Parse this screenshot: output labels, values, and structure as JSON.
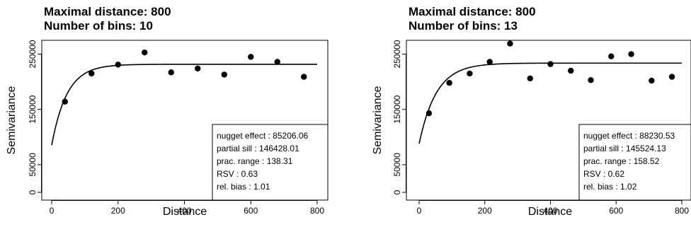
{
  "chart_data": [
    {
      "type": "scatter",
      "title_lines": [
        "Maximal distance: 800",
        "Number of bins: 10"
      ],
      "xlabel": "Distance",
      "ylabel": "Semivariance",
      "xlim": [
        0,
        800
      ],
      "ylim": [
        0,
        275000
      ],
      "xticks": [
        0,
        200,
        400,
        600,
        800
      ],
      "yticks": [
        0,
        50000,
        150000,
        250000
      ],
      "xtick_labels": [
        "0",
        "200",
        "400",
        "600",
        "800"
      ],
      "ytick_labels": [
        "0",
        "50000",
        "150000",
        "250000"
      ],
      "points": {
        "x": [
          40,
          120,
          200,
          280,
          360,
          440,
          520,
          600,
          680,
          760
        ],
        "y": [
          164000,
          215000,
          231000,
          253000,
          217000,
          224000,
          213000,
          245000,
          236000,
          209000
        ]
      },
      "model": {
        "nugget": 85206.06,
        "partial_sill": 146428.01,
        "range": 138.31
      },
      "legend": {
        "position": "bottom-right",
        "lines": [
          "nugget effect : 85206.06",
          "partial sill : 146428.01",
          "prac. range : 138.31",
          "RSV : 0.63",
          "rel. bias : 1.01"
        ]
      }
    },
    {
      "type": "scatter",
      "title_lines": [
        "Maximal distance: 800",
        "Number of bins: 13"
      ],
      "xlabel": "Distance",
      "ylabel": "Semivariance",
      "xlim": [
        0,
        800
      ],
      "ylim": [
        0,
        275000
      ],
      "xticks": [
        0,
        200,
        400,
        600,
        800
      ],
      "yticks": [
        0,
        50000,
        150000,
        250000
      ],
      "xtick_labels": [
        "0",
        "200",
        "400",
        "600",
        "800"
      ],
      "ytick_labels": [
        "0",
        "50000",
        "150000",
        "250000"
      ],
      "points": {
        "x": [
          30,
          92,
          154,
          215,
          277,
          338,
          400,
          462,
          523,
          585,
          646,
          708,
          770
        ],
        "y": [
          143000,
          198000,
          215000,
          236000,
          269000,
          206000,
          232000,
          220000,
          203000,
          246000,
          250000,
          202000,
          209000
        ]
      },
      "model": {
        "nugget": 88230.53,
        "partial_sill": 145524.13,
        "range": 158.52
      },
      "legend": {
        "position": "bottom-right",
        "lines": [
          "nugget effect : 88230.53",
          "partial sill : 145524.13",
          "prac. range : 158.52",
          "RSV : 0.62",
          "rel. bias : 1.02"
        ]
      }
    }
  ]
}
